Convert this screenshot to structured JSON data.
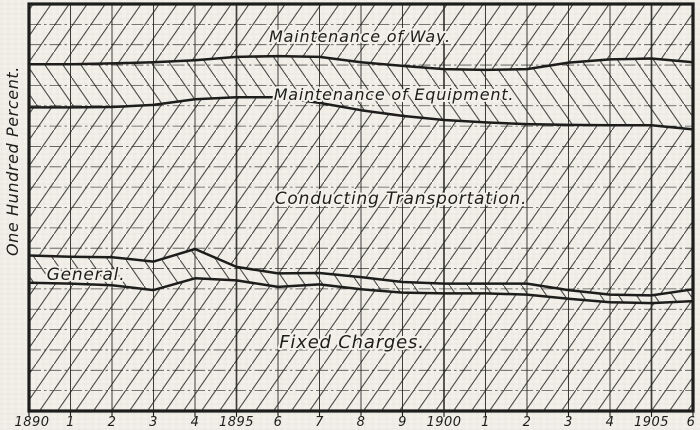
{
  "page": {
    "paper_color": "#f2f0e9",
    "ink_color": "#1d1d1b"
  },
  "y_axis": {
    "label": "One Hundred Percent."
  },
  "chart_data": {
    "type": "area",
    "stacked": true,
    "ylabel": "One Hundred Percent.",
    "xlabel": "",
    "ylim": [
      0,
      100
    ],
    "grid": true,
    "legend_position": "labels-inside-areas",
    "x_tick_labels": [
      "1890",
      "1",
      "2",
      "3",
      "4",
      "1895",
      "6",
      "7",
      "8",
      "9",
      "1900",
      "1",
      "2",
      "3",
      "4",
      "1905",
      "6"
    ],
    "years": [
      1890,
      1891,
      1892,
      1893,
      1894,
      1895,
      1896,
      1897,
      1898,
      1899,
      1900,
      1901,
      1902,
      1903,
      1904,
      1905,
      1906
    ],
    "series": [
      {
        "name": "Maintenance of Way.",
        "hatch": "/",
        "values": [
          14.8,
          14.8,
          14.6,
          14.3,
          13.8,
          13.0,
          12.8,
          13.0,
          14.3,
          15.2,
          16.0,
          16.2,
          16.0,
          14.4,
          13.6,
          13.4,
          14.3
        ]
      },
      {
        "name": "Maintenance of Equipment.",
        "hatch": "\\",
        "values": [
          10.6,
          10.6,
          10.7,
          10.5,
          9.6,
          9.9,
          10.1,
          11.3,
          11.8,
          12.3,
          12.5,
          12.9,
          13.5,
          15.3,
          16.2,
          16.4,
          16.5
        ]
      },
      {
        "name": "Conducting Transportation.",
        "hatch": "/",
        "values": [
          36.4,
          36.7,
          36.9,
          38.5,
          36.8,
          41.7,
          43.3,
          41.8,
          41.0,
          40.8,
          40.2,
          39.6,
          39.2,
          40.6,
          41.6,
          41.8,
          39.3
        ]
      },
      {
        "name": "General.",
        "hatch": "\\",
        "values": [
          6.7,
          6.6,
          6.9,
          7.0,
          7.2,
          3.3,
          3.3,
          2.8,
          3.0,
          2.6,
          2.4,
          2.4,
          2.7,
          2.1,
          1.9,
          1.9,
          2.9
        ]
      },
      {
        "name": "Fixed Charges.",
        "hatch": "/",
        "values": [
          31.5,
          31.3,
          30.9,
          29.7,
          32.6,
          32.1,
          30.5,
          31.1,
          29.9,
          29.1,
          28.9,
          28.9,
          28.6,
          27.6,
          26.7,
          26.5,
          27.0
        ]
      }
    ]
  }
}
